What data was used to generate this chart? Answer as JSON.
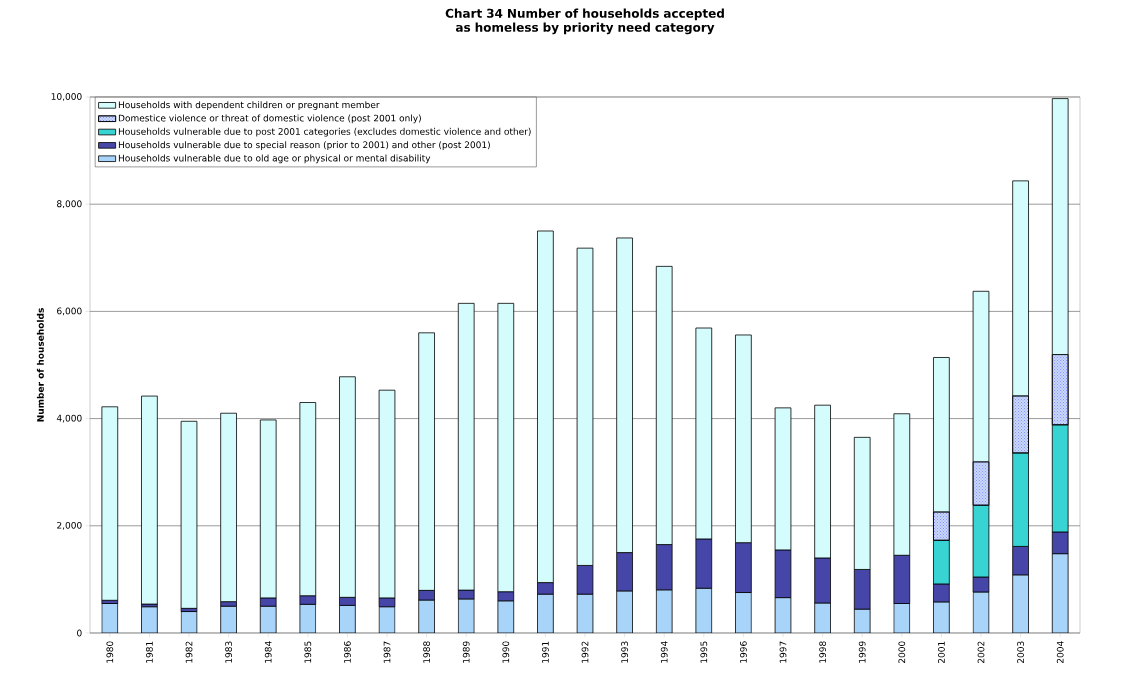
{
  "chart_data": {
    "type": "bar",
    "stacked": true,
    "title": "Chart 34     Number of households accepted as homeless by priority need category",
    "ylabel": "Number of households",
    "categories": [
      "1980",
      "1981",
      "1982",
      "1983",
      "1984",
      "1985",
      "1986",
      "1987",
      "1988",
      "1989",
      "1990",
      "1991",
      "1992",
      "1993",
      "1994",
      "1995",
      "1996",
      "1997",
      "1998",
      "1999",
      "2000",
      "2001",
      "2002",
      "2003",
      "2004"
    ],
    "series": [
      {
        "name": "Households vulnerable due to old age or physical or mental disability",
        "color": "#a8d4fa",
        "values": [
          550,
          490,
          400,
          500,
          500,
          535,
          515,
          490,
          615,
          635,
          600,
          725,
          725,
          785,
          805,
          835,
          755,
          660,
          560,
          445,
          550,
          580,
          765,
          1085,
          1480
        ]
      },
      {
        "name": "Households vulnerable due to special reason (prior to 2001) and other (post 2001)",
        "color": "#4646a8",
        "values": [
          60,
          50,
          60,
          85,
          155,
          160,
          150,
          165,
          180,
          165,
          170,
          215,
          535,
          715,
          845,
          920,
          930,
          890,
          840,
          740,
          900,
          335,
          280,
          530,
          405
        ]
      },
      {
        "name": "Households vulnerable due to post 2001 categories (excludes domestic violence and other)",
        "color": "#38d4d4",
        "values": [
          null,
          null,
          null,
          null,
          null,
          null,
          null,
          null,
          null,
          null,
          null,
          null,
          null,
          null,
          null,
          null,
          null,
          null,
          null,
          null,
          null,
          815,
          1340,
          1745,
          2000
        ]
      },
      {
        "name": "Domestice violence or threat of domestic violence (post 2001 only)",
        "color": "#c8d8f8",
        "values": [
          null,
          null,
          null,
          null,
          null,
          null,
          null,
          null,
          null,
          null,
          null,
          null,
          null,
          null,
          null,
          null,
          null,
          null,
          null,
          null,
          null,
          530,
          810,
          1065,
          1310
        ]
      },
      {
        "name": "Households with dependent children or pregnant member",
        "color": "#d4fcfc",
        "values": [
          3610,
          3880,
          3490,
          3515,
          3320,
          3605,
          4115,
          3875,
          4805,
          5350,
          5380,
          6560,
          5920,
          5870,
          5190,
          3935,
          3875,
          2650,
          2850,
          2465,
          2640,
          2880,
          3180,
          4010,
          4775
        ]
      }
    ],
    "ylim": [
      0,
      10000
    ],
    "yticks": [
      {
        "value": 0,
        "label": "0"
      },
      {
        "value": 2000,
        "label": "2,000"
      },
      {
        "value": 4000,
        "label": "4,000"
      },
      {
        "value": 6000,
        "label": "6,000"
      },
      {
        "value": 8000,
        "label": "8,000"
      },
      {
        "value": 10000,
        "label": "10,000"
      }
    ],
    "grid": "y",
    "legend": "top left"
  }
}
